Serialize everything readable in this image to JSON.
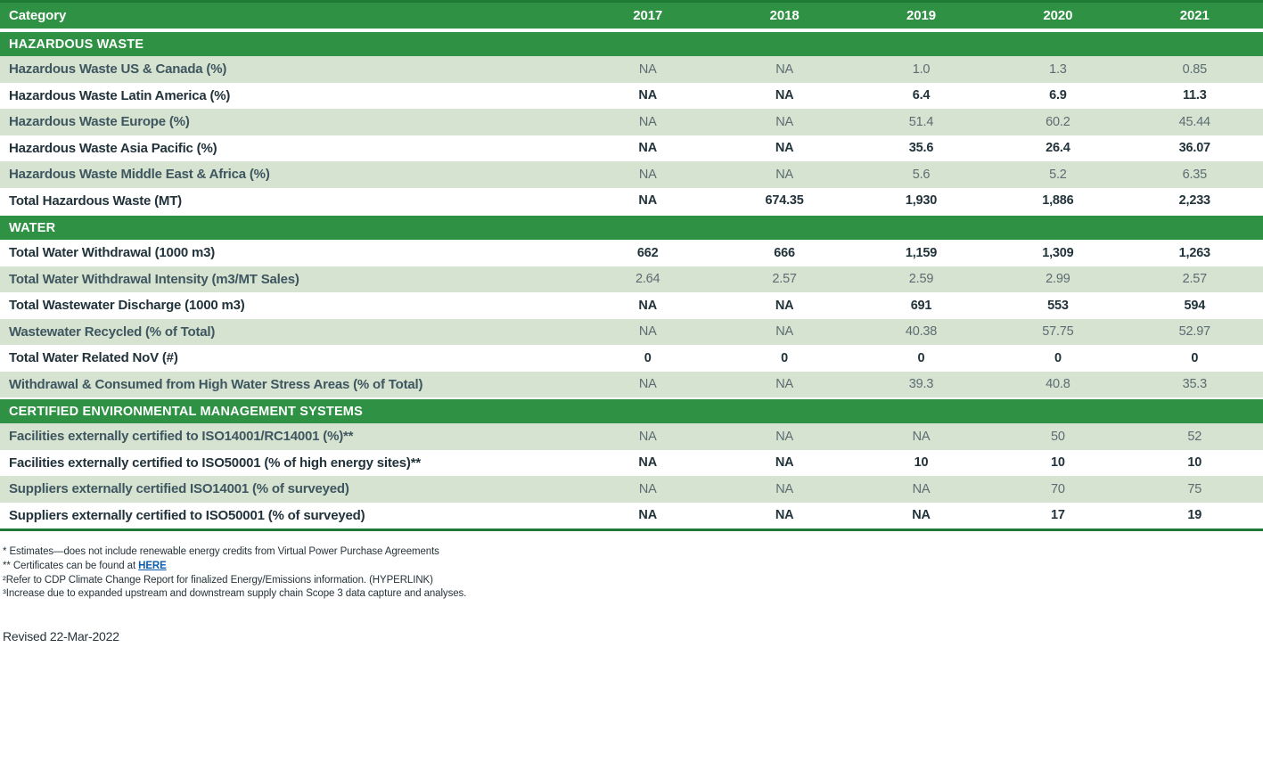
{
  "table": {
    "columns": [
      "Category",
      "2017",
      "2018",
      "2019",
      "2020",
      "2021"
    ],
    "sections": [
      {
        "title": "HAZARDOUS WASTE",
        "rows": [
          {
            "label": "Hazardous Waste US & Canada (%)",
            "values": [
              "NA",
              "NA",
              "1.0",
              "1.3",
              "0.85"
            ]
          },
          {
            "label": "Hazardous Waste Latin America (%)",
            "values": [
              "NA",
              "NA",
              "6.4",
              "6.9",
              "11.3"
            ]
          },
          {
            "label": "Hazardous Waste Europe (%)",
            "values": [
              "NA",
              "NA",
              "51.4",
              "60.2",
              "45.44"
            ]
          },
          {
            "label": "Hazardous Waste Asia Pacific (%)",
            "values": [
              "NA",
              "NA",
              "35.6",
              "26.4",
              "36.07"
            ]
          },
          {
            "label": "Hazardous Waste Middle East & Africa (%)",
            "values": [
              "NA",
              "NA",
              "5.6",
              "5.2",
              "6.35"
            ]
          },
          {
            "label": "Total Hazardous Waste (MT)",
            "values": [
              "NA",
              "674.35",
              "1,930",
              "1,886",
              "2,233"
            ]
          }
        ]
      },
      {
        "title": "WATER",
        "rows": [
          {
            "label": "Total Water Withdrawal (1000 m3)",
            "values": [
              "662",
              "666",
              "1,159",
              "1,309",
              "1,263"
            ]
          },
          {
            "label": "Total Water Withdrawal Intensity (m3/MT Sales)",
            "values": [
              "2.64",
              "2.57",
              "2.59",
              "2.99",
              "2.57"
            ]
          },
          {
            "label": "Total Wastewater Discharge (1000 m3)",
            "values": [
              "NA",
              "NA",
              "691",
              "553",
              "594"
            ]
          },
          {
            "label": "Wastewater Recycled (% of Total)",
            "values": [
              "NA",
              "NA",
              "40.38",
              "57.75",
              "52.97"
            ]
          },
          {
            "label": "Total Water Related NoV (#)",
            "values": [
              "0",
              "0",
              "0",
              "0",
              "0"
            ]
          },
          {
            "label": "Withdrawal & Consumed from High Water Stress Areas (% of Total)",
            "values": [
              "NA",
              "NA",
              "39.3",
              "40.8",
              "35.3"
            ]
          }
        ]
      },
      {
        "title": "CERTIFIED ENVIRONMENTAL MANAGEMENT SYSTEMS",
        "rows": [
          {
            "label": "Facilities externally certified to ISO14001/RC14001 (%)**",
            "values": [
              "NA",
              "NA",
              "NA",
              "50",
              "52"
            ]
          },
          {
            "label": "Facilities externally certified to ISO50001 (% of high energy sites)**",
            "values": [
              "NA",
              "NA",
              "10",
              "10",
              "10"
            ]
          },
          {
            "label": "Suppliers externally certified ISO14001 (% of surveyed)",
            "values": [
              "NA",
              "NA",
              "NA",
              "70",
              "75"
            ]
          },
          {
            "label": "Suppliers externally certified to ISO50001 (% of surveyed)",
            "values": [
              "NA",
              "NA",
              "NA",
              "17",
              "19"
            ]
          }
        ]
      }
    ]
  },
  "footnotes": [
    {
      "segments": [
        {
          "type": "plain",
          "text": "* Estimates—does not include renewable energy credits from Virtual Power Purchase Agreements"
        }
      ]
    },
    {
      "segments": [
        {
          "type": "plain",
          "text": "** Certificates can be found at "
        },
        {
          "type": "link",
          "text": "HERE"
        }
      ]
    },
    {
      "segments": [
        {
          "type": "plain",
          "text": "²Refer to CDP Climate Change Report for finalized Energy/Emissions information. (HYPERLINK)"
        }
      ]
    },
    {
      "segments": [
        {
          "type": "plain",
          "text": "³Increase due to expanded upstream and downstream supply chain Scope 3 data capture and analyses."
        }
      ]
    }
  ],
  "revised": "Revised 22-Mar-2022",
  "colors": {
    "header_green": "#2E9144",
    "border_green": "#1F7A35",
    "row_light_green": "#D7E3D1",
    "label_dark": "#22333B",
    "label_shaded": "#3E565F",
    "value_shaded": "#5B6C72",
    "link_blue": "#0B5CAB"
  }
}
